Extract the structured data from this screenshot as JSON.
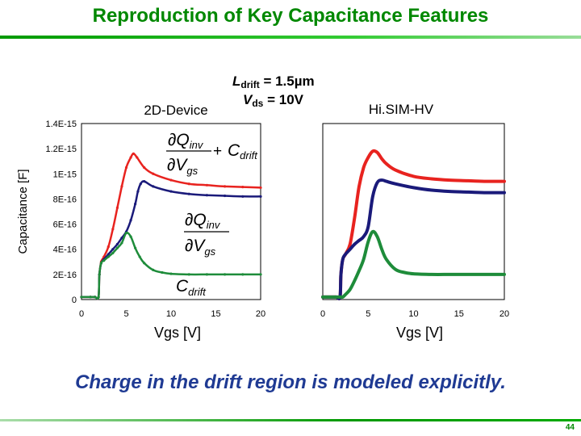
{
  "title": "Reproduction of Key Capacitance Features",
  "caption": "Charge in the drift region is modeled explicitly.",
  "page_number": "44",
  "conditions": {
    "ldrift_prefix": "L",
    "ldrift_sub": "drift",
    "ldrift_value": " = 1.5µm",
    "vds_prefix": "V",
    "vds_sub": "ds",
    "vds_value": " = 10V"
  },
  "formula_labels": {
    "q_inv": "Q",
    "q_inv_sub": "inv",
    "v_gs": "V",
    "v_gs_sub": "gs",
    "partial": "∂",
    "plus": "+",
    "c_drift": "C",
    "c_drift_sub": "drift"
  },
  "colors": {
    "title": "#008800",
    "caption": "#1f3a93",
    "red_series": "#e8231f",
    "blue_series": "#1a1a7a",
    "green_series": "#1e8c3a"
  },
  "chart_data": [
    {
      "type": "scatter",
      "title": "2D-Device",
      "xlabel": "Vgs [V]",
      "ylabel": "Capacitance [F]",
      "xlim": [
        0,
        20
      ],
      "ylim": [
        0,
        1.4e-15
      ],
      "xticks": [
        "0",
        "5",
        "10",
        "15",
        "20"
      ],
      "yticks": [
        "0",
        "2E-16",
        "4E-16",
        "6E-16",
        "8E-16",
        "1E-15",
        "1.2E-15",
        "1.4E-15"
      ],
      "grid": false,
      "series": [
        {
          "color": "#e8231f",
          "x": [
            0,
            1,
            1.5,
            1.9,
            2.0,
            2.2,
            2.5,
            3.0,
            3.5,
            4.0,
            4.5,
            5.0,
            5.5,
            5.8,
            6.2,
            7.0,
            8.0,
            10.0,
            12.0,
            14.0,
            16.0,
            18.0,
            20.0
          ],
          "values": [
            2e-17,
            2e-17,
            2e-17,
            2e-17,
            2e-16,
            3e-16,
            3.4e-16,
            4.2e-16,
            5.6e-16,
            7.3e-16,
            9e-16,
            1.05e-15,
            1.13e-15,
            1.16e-15,
            1.13e-15,
            1.05e-15,
            1e-15,
            9.5e-16,
            9.2e-16,
            9.1e-16,
            9e-16,
            8.95e-16,
            8.9e-16
          ]
        },
        {
          "color": "#1a1a7a",
          "x": [
            0,
            1,
            1.5,
            1.9,
            2.0,
            2.2,
            2.5,
            3.0,
            3.5,
            4.0,
            4.5,
            5.0,
            5.5,
            6.0,
            6.3,
            6.6,
            7.0,
            8.0,
            10.0,
            12.0,
            14.0,
            16.0,
            18.0,
            20.0
          ],
          "values": [
            2e-17,
            2e-17,
            2e-17,
            2e-17,
            2e-16,
            2.9e-16,
            3.2e-16,
            3.6e-16,
            4e-16,
            4.4e-16,
            4.9e-16,
            5.4e-16,
            6.3e-16,
            7.6e-16,
            8.6e-16,
            9.2e-16,
            9.4e-16,
            9e-16,
            8.6e-16,
            8.4e-16,
            8.3e-16,
            8.25e-16,
            8.2e-16,
            8.2e-16
          ]
        },
        {
          "color": "#1e8c3a",
          "x": [
            0,
            1,
            1.5,
            1.9,
            2.0,
            2.2,
            2.5,
            3.0,
            3.5,
            4.0,
            4.5,
            5.0,
            5.5,
            6.0,
            6.5,
            7.0,
            8.0,
            9.0,
            10.0,
            12.0,
            14.0,
            16.0,
            18.0,
            20.0
          ],
          "values": [
            2e-17,
            2e-17,
            2e-17,
            2e-17,
            2e-16,
            2.9e-16,
            3.1e-16,
            3.4e-16,
            3.7e-16,
            4.1e-16,
            4.5e-16,
            5.3e-16,
            5e-16,
            4.1e-16,
            3.4e-16,
            2.9e-16,
            2.35e-16,
            2.15e-16,
            2.05e-16,
            2e-16,
            2e-16,
            2e-16,
            2e-16,
            2e-16
          ]
        }
      ]
    },
    {
      "type": "line",
      "title": "Hi.SIM-HV",
      "xlabel": "Vgs [V]",
      "xlim": [
        0,
        20
      ],
      "ylim": [
        0,
        1.4e-15
      ],
      "xticks": [
        "0",
        "5",
        "10",
        "15",
        "20"
      ],
      "grid": false,
      "series": [
        {
          "color": "#e8231f",
          "x": [
            0,
            1,
            1.5,
            1.9,
            2.0,
            2.2,
            2.5,
            3.0,
            3.5,
            4.0,
            4.5,
            5.0,
            5.5,
            6.0,
            6.5,
            7.0,
            8.0,
            10.0,
            12.0,
            14.0,
            16.0,
            18.0,
            20.0
          ],
          "values": [
            2e-17,
            2e-17,
            2e-17,
            2e-17,
            2e-16,
            3.2e-16,
            3.6e-16,
            4.4e-16,
            6.5e-16,
            9e-16,
            1.05e-15,
            1.13e-15,
            1.18e-15,
            1.17e-15,
            1.12e-15,
            1.08e-15,
            1.03e-15,
            9.8e-16,
            9.6e-16,
            9.5e-16,
            9.45e-16,
            9.4e-16,
            9.4e-16
          ]
        },
        {
          "color": "#1a1a7a",
          "x": [
            0,
            1,
            1.5,
            1.9,
            2.0,
            2.2,
            2.5,
            3.0,
            3.5,
            4.0,
            4.5,
            5.0,
            5.5,
            6.0,
            6.5,
            7.0,
            8.0,
            10.0,
            12.0,
            14.0,
            16.0,
            18.0,
            20.0
          ],
          "values": [
            2e-17,
            2e-17,
            2e-17,
            2e-17,
            2e-16,
            3.2e-16,
            3.6e-16,
            4e-16,
            4.4e-16,
            4.7e-16,
            5e-16,
            5.8e-16,
            8.2e-16,
            9.3e-16,
            9.5e-16,
            9.4e-16,
            9.2e-16,
            8.9e-16,
            8.7e-16,
            8.6e-16,
            8.55e-16,
            8.5e-16,
            8.5e-16
          ]
        },
        {
          "color": "#1e8c3a",
          "x": [
            0,
            1,
            1.5,
            1.9,
            2.0,
            2.2,
            2.5,
            3.0,
            3.5,
            4.0,
            4.5,
            5.0,
            5.5,
            6.0,
            6.5,
            7.0,
            8.0,
            9.0,
            10.0,
            12.0,
            14.0,
            16.0,
            18.0,
            20.0
          ],
          "values": [
            2e-17,
            2e-17,
            2e-17,
            2e-17,
            2e-17,
            2e-17,
            4e-17,
            8e-17,
            1.5e-16,
            2.3e-16,
            3.2e-16,
            4.6e-16,
            5.4e-16,
            5e-16,
            4e-16,
            3.2e-16,
            2.4e-16,
            2.15e-16,
            2.05e-16,
            2e-16,
            2e-16,
            2e-16,
            2e-16,
            2e-16
          ]
        }
      ]
    }
  ]
}
